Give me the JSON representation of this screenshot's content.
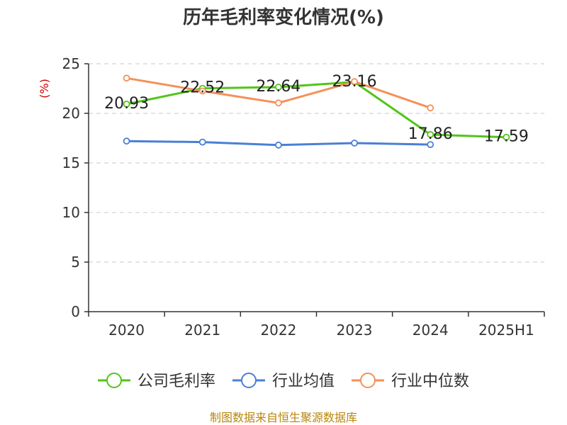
{
  "chart_data": {
    "type": "line",
    "title": "历年毛利率变化情况(%)",
    "ylabel": "(%)",
    "xlabel": "",
    "categories": [
      "2020",
      "2021",
      "2022",
      "2023",
      "2024",
      "2025H1"
    ],
    "ylim": [
      0,
      25
    ],
    "yticks": [
      0,
      5,
      10,
      15,
      20,
      25
    ],
    "grid": true,
    "legend_position": "bottom",
    "series": [
      {
        "name": "公司毛利率",
        "color": "#52c41a",
        "values": [
          20.93,
          22.52,
          22.64,
          23.16,
          17.86,
          17.59
        ],
        "show_labels": true
      },
      {
        "name": "行业均值",
        "color": "#4a7fd6",
        "values": [
          17.2,
          17.1,
          16.8,
          17.0,
          16.85,
          null
        ],
        "show_labels": false
      },
      {
        "name": "行业中位数",
        "color": "#f5905a",
        "values": [
          23.55,
          22.25,
          21.05,
          23.2,
          20.55,
          null
        ],
        "show_labels": false
      }
    ]
  },
  "source_text": "制图数据来自恒生聚源数据库"
}
